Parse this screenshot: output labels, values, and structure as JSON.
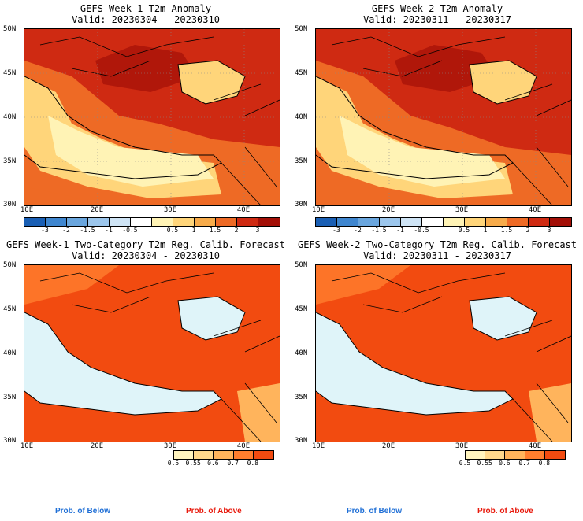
{
  "panels": [
    {
      "title_line1": "GEFS Week-1 T2m Anomaly",
      "title_line2": "Valid: 20230304 - 20230310",
      "type": "anomaly"
    },
    {
      "title_line1": "GEFS Week-2 T2m Anomaly",
      "title_line2": "Valid: 20230311 - 20230317",
      "type": "anomaly"
    },
    {
      "title_line1": "GEFS Week-1 Two-Category T2m Reg. Calib. Forecast",
      "title_line2": "Valid: 20230304 - 20230310",
      "type": "probability"
    },
    {
      "title_line1": "GEFS Week-2 Two-Category T2m Reg. Calib. Forecast",
      "title_line2": "Valid: 20230311 - 20230317",
      "type": "probability"
    }
  ],
  "lat_labels": [
    "50N",
    "45N",
    "40N",
    "35N",
    "30N"
  ],
  "lon_labels": [
    "10E",
    "20E",
    "30E",
    "40E"
  ],
  "anomaly_colorbar": {
    "ticks": [
      "-3",
      "-2",
      "-1.5",
      "-1",
      "-0.5",
      "0.5",
      "1",
      "1.5",
      "2",
      "3"
    ],
    "colors": [
      "#1a5fb4",
      "#3f86cf",
      "#6aa6de",
      "#9cc6ec",
      "#cfe4f5",
      "#ffffff",
      "#fff3b5",
      "#ffd57a",
      "#f7ab4a",
      "#ee6a25",
      "#cf2a12",
      "#a30f07"
    ]
  },
  "prob_colorbar": {
    "ticks": [
      "0.5",
      "0.55",
      "0.6",
      "0.7",
      "0.8"
    ],
    "colors": [
      "#fff4bf",
      "#ffd88c",
      "#ffb45c",
      "#ff7e2e",
      "#f24b10"
    ]
  },
  "legend": {
    "below_label": "Prob. of Below",
    "above_label": "Prob. of Above",
    "below_color": "#1f6fd6",
    "above_color": "#e8190c"
  }
}
